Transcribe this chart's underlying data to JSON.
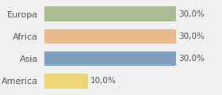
{
  "categories": [
    "Europa",
    "Africa",
    "Asia",
    "America"
  ],
  "values": [
    30.0,
    30.0,
    30.0,
    10.0
  ],
  "bar_colors": [
    "#a8bc8f",
    "#e8b98a",
    "#7f9ec0",
    "#f0d575"
  ],
  "labels": [
    "30,0%",
    "30,0%",
    "30,0%",
    "10,0%"
  ],
  "max_value": 40,
  "background_color": "#f0f0f0",
  "bar_height": 0.65,
  "label_fontsize": 7.5,
  "category_fontsize": 8.0,
  "label_color": "#555555"
}
